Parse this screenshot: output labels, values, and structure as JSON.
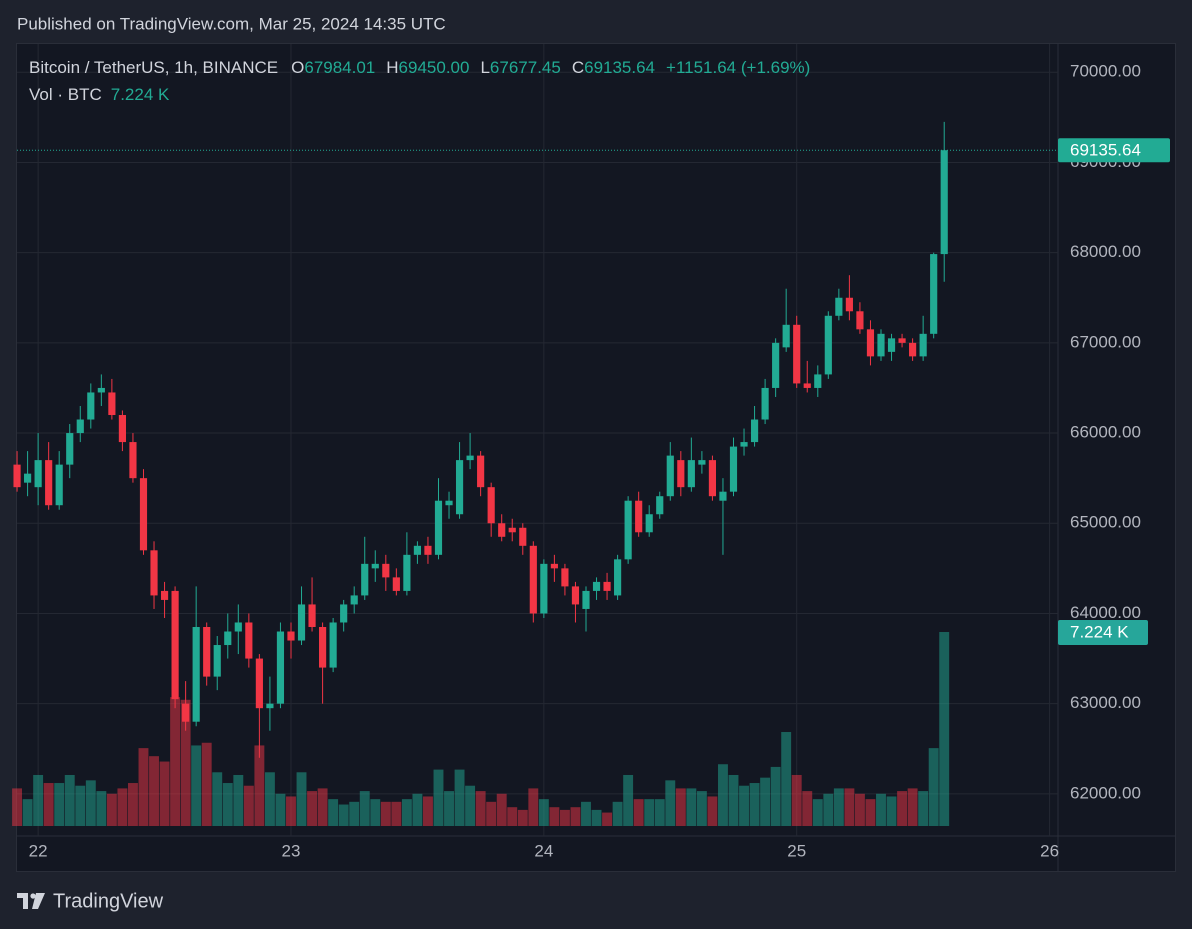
{
  "chart_data": {
    "type": "candlestick",
    "published": "Published on TradingView.com, Mar 25, 2024 14:35 UTC",
    "brand": "TradingView",
    "title": "Bitcoin / TetherUS, 1h, BINANCE",
    "ohlc_fields": [
      {
        "label": "O",
        "value": "67984.01"
      },
      {
        "label": "H",
        "value": "69450.00"
      },
      {
        "label": "L",
        "value": "67677.45"
      },
      {
        "label": "C",
        "value": "69135.64"
      }
    ],
    "change": "+1151.64 (+1.69%)",
    "volume_title": "Vol · BTC",
    "volume_label": "7.224 K",
    "last_price_label": "69135.64",
    "up_color": "#22ab94",
    "down_color": "#f23645",
    "grid": true,
    "x": [
      -2,
      -1,
      0,
      1,
      2,
      3,
      4,
      5,
      6,
      7,
      8,
      9,
      10,
      11,
      12,
      13,
      14,
      15,
      16,
      17,
      18,
      19,
      20,
      21,
      22,
      23,
      24,
      25,
      26,
      27,
      28,
      29,
      30,
      31,
      32,
      33,
      34,
      35,
      36,
      37,
      38,
      39,
      40,
      41,
      42,
      43,
      44,
      45,
      46,
      47,
      48,
      49,
      50,
      51,
      52,
      53,
      54,
      55,
      56,
      57,
      58,
      59,
      60,
      61,
      62,
      63,
      64,
      65,
      66,
      67,
      68,
      69,
      70,
      71,
      72,
      73,
      74,
      75,
      76,
      77,
      78,
      79,
      80,
      81,
      82,
      83,
      84,
      85,
      86
    ],
    "xlim": [
      -2.1,
      96.8
    ],
    "xticks": [
      {
        "value": 0,
        "label": "22"
      },
      {
        "value": 24,
        "label": "23"
      },
      {
        "value": 48,
        "label": "24"
      },
      {
        "value": 72,
        "label": "25"
      },
      {
        "value": 96,
        "label": "26"
      }
    ],
    "ylim": [
      61533,
      70313
    ],
    "yticks": [
      {
        "value": 62000,
        "label": "62000.00"
      },
      {
        "value": 63000,
        "label": "63000.00"
      },
      {
        "value": 64000,
        "label": "64000.00"
      },
      {
        "value": 65000,
        "label": "65000.00"
      },
      {
        "value": 66000,
        "label": "66000.00"
      },
      {
        "value": 67000,
        "label": "67000.00"
      },
      {
        "value": 68000,
        "label": "68000.00"
      },
      {
        "value": 69000,
        "label": "69000.00"
      },
      {
        "value": 70000,
        "label": "70000.00"
      }
    ],
    "open": [
      65650,
      65450,
      65400,
      65700,
      65200,
      65650,
      66000,
      66150,
      66450,
      66450,
      66200,
      65900,
      65500,
      64700,
      64250,
      64250,
      63000,
      62800,
      63850,
      63300,
      63650,
      63800,
      63900,
      63500,
      62950,
      63000,
      63800,
      63700,
      64100,
      63850,
      63400,
      63900,
      64100,
      64200,
      64500,
      64550,
      64400,
      64250,
      64650,
      64750,
      64650,
      65200,
      65100,
      65700,
      65750,
      65400,
      65000,
      64950,
      64950,
      64750,
      64000,
      64550,
      64500,
      64300,
      64050,
      64250,
      64350,
      64200,
      64600,
      65250,
      64900,
      65100,
      65300,
      65700,
      65400,
      65650,
      65700,
      65250,
      65350,
      65850,
      65900,
      66150,
      66500,
      66950,
      67200,
      66550,
      66500,
      66650,
      67300,
      67500,
      67350,
      67150,
      66850,
      66900,
      67050,
      67000,
      66850,
      67100,
      67984.01
    ],
    "high": [
      65800,
      65800,
      66000,
      65900,
      65800,
      66100,
      66300,
      66550,
      66650,
      66600,
      66250,
      66000,
      65600,
      64800,
      64350,
      64300,
      63250,
      64300,
      63900,
      63750,
      64000,
      64100,
      64000,
      63550,
      63300,
      63900,
      63900,
      64300,
      64400,
      63900,
      63950,
      64150,
      64300,
      64850,
      64700,
      64650,
      64500,
      64900,
      64800,
      64850,
      65500,
      65350,
      65900,
      66000,
      65800,
      65450,
      65100,
      65050,
      65000,
      64800,
      64600,
      64650,
      64550,
      64350,
      64300,
      64400,
      64450,
      64650,
      65300,
      65350,
      65200,
      65350,
      65900,
      65800,
      65950,
      65800,
      65750,
      65500,
      65950,
      66050,
      66300,
      66600,
      67050,
      67600,
      67300,
      66800,
      66750,
      67350,
      67600,
      67750,
      67450,
      67250,
      67150,
      67100,
      67100,
      67050,
      67300,
      68000,
      69450
    ],
    "low": [
      65350,
      65300,
      65200,
      65150,
      65150,
      65500,
      65900,
      66050,
      66300,
      66150,
      65800,
      65450,
      64650,
      64050,
      63950,
      62950,
      62700,
      62750,
      63200,
      63150,
      63500,
      63550,
      63400,
      62400,
      62700,
      62950,
      63500,
      63650,
      63800,
      63000,
      63350,
      63800,
      64000,
      64150,
      64350,
      64250,
      64200,
      64200,
      64550,
      64550,
      64600,
      65050,
      65050,
      65600,
      65300,
      64850,
      64800,
      64800,
      64650,
      63900,
      63950,
      64350,
      64200,
      63900,
      63800,
      64150,
      64150,
      64150,
      64550,
      64850,
      64850,
      65050,
      65250,
      65300,
      65350,
      65550,
      65250,
      64650,
      65300,
      65750,
      65850,
      66100,
      66400,
      66900,
      66500,
      66450,
      66400,
      66600,
      67250,
      67250,
      67100,
      66750,
      66800,
      66800,
      66950,
      66800,
      66800,
      67050,
      67677.45
    ],
    "close": [
      65400,
      65550,
      65700,
      65200,
      65650,
      66000,
      66150,
      66450,
      66500,
      66200,
      65900,
      65500,
      64700,
      64200,
      64150,
      63050,
      62800,
      63850,
      63300,
      63650,
      63800,
      63900,
      63500,
      62950,
      63000,
      63800,
      63700,
      64100,
      63850,
      63400,
      63900,
      64100,
      64200,
      64550,
      64550,
      64400,
      64250,
      64650,
      64750,
      64650,
      65250,
      65250,
      65700,
      65750,
      65400,
      65000,
      64850,
      64900,
      64750,
      64000,
      64550,
      64500,
      64300,
      64100,
      64250,
      64350,
      64250,
      64600,
      65250,
      64900,
      65100,
      65300,
      65750,
      65400,
      65700,
      65700,
      65300,
      65350,
      65850,
      65900,
      66150,
      66500,
      67000,
      67200,
      66550,
      66500,
      66650,
      67300,
      67500,
      67350,
      67150,
      66850,
      67100,
      67050,
      67000,
      66850,
      67100,
      67984.01,
      69135.64
    ],
    "volume": [
      1400,
      1000,
      1900,
      1600,
      1600,
      1900,
      1500,
      1700,
      1300,
      1200,
      1400,
      1600,
      2900,
      2600,
      2400,
      4800,
      4700,
      3000,
      3100,
      2000,
      1600,
      1900,
      1500,
      3000,
      2000,
      1200,
      1100,
      2000,
      1300,
      1400,
      1000,
      800,
      900,
      1300,
      1000,
      900,
      900,
      1000,
      1200,
      1100,
      2100,
      1300,
      2100,
      1500,
      1300,
      900,
      1200,
      700,
      600,
      1400,
      1000,
      700,
      600,
      700,
      900,
      600,
      500,
      900,
      1900,
      1000,
      1000,
      1000,
      1700,
      1400,
      1400,
      1300,
      1100,
      2300,
      1900,
      1500,
      1600,
      1800,
      2200,
      3500,
      1900,
      1300,
      1000,
      1200,
      1400,
      1400,
      1200,
      1000,
      1200,
      1100,
      1300,
      1400,
      1300,
      2900,
      7224
    ]
  }
}
